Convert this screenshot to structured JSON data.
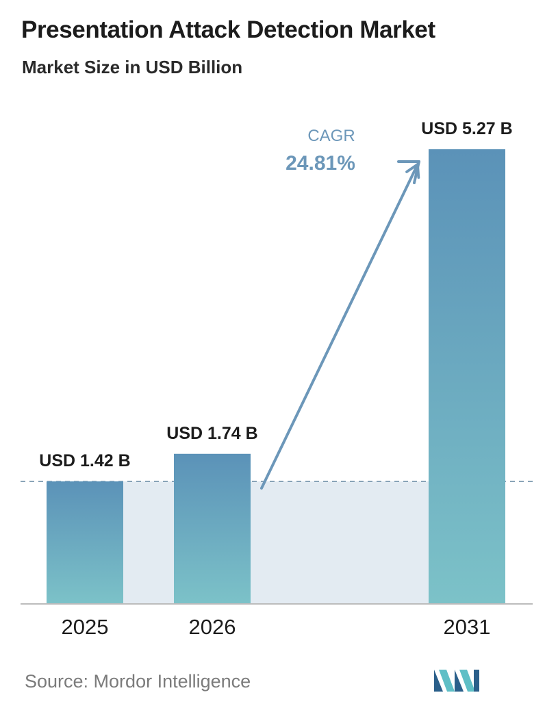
{
  "title": "Presentation Attack Detection Market",
  "subtitle": "Market Size in USD Billion",
  "source": "Source: Mordor Intelligence",
  "colors": {
    "bar_top": "#5b92b8",
    "bar_bottom": "#7cc2c8",
    "band": "#e3ebf2",
    "baseline_dash": "#6f8fa8",
    "axis": "#bcbcbc",
    "cagr": "#6c97b9",
    "logo_dark": "#2a5f8a",
    "logo_light": "#5fbfc6"
  },
  "chart_data": {
    "type": "bar",
    "categories": [
      "2025",
      "2026",
      "2031"
    ],
    "values": [
      1.42,
      1.74,
      5.27
    ],
    "value_labels": [
      "USD 1.42 B",
      "USD 1.74 B",
      "USD 5.27 B"
    ],
    "ylim": [
      0,
      5.27
    ],
    "annotation": {
      "label": "CAGR",
      "value": "24.81%",
      "from": "2026",
      "to": "2031"
    }
  }
}
